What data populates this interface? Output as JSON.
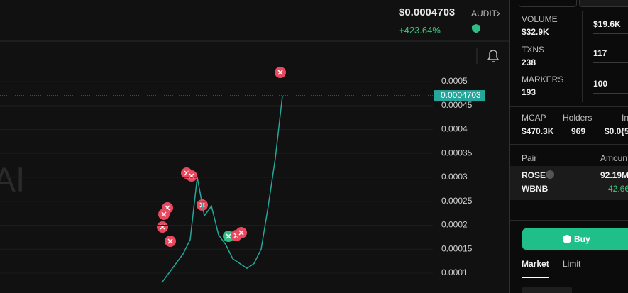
{
  "header": {
    "price": "$0.0004703",
    "change": "+423.64%",
    "audit": "AUDIT"
  },
  "watermark": "AI",
  "price_chart": {
    "type": "line",
    "color": "#26a69a",
    "values": [
      8e-05,
      0.0001,
      0.00012,
      0.00014,
      0.00017,
      0.0003,
      0.00022,
      0.00024,
      0.00018,
      0.00016,
      0.00013,
      0.00012,
      0.00011,
      0.00012,
      0.00015,
      0.00024,
      0.00034,
      0.0004703
    ],
    "ylim": [
      5.85e-05,
      0.0005815
    ],
    "yticks": [
      0.0001,
      0.00015,
      0.0002,
      0.00025,
      0.0003,
      0.00035,
      0.0004,
      0.00045,
      0.0005
    ],
    "current_price": 0.0004703
  },
  "stats": [
    {
      "label": "VOLUME",
      "value": "$32.9K",
      "right": "$19.6K"
    },
    {
      "label": "TXNS",
      "value": "238",
      "right": "117"
    },
    {
      "label": "MARKERS",
      "value": "193",
      "right": "100"
    }
  ],
  "metrics": [
    {
      "label": "MCAP",
      "value": "$470.3K"
    },
    {
      "label": "Holders",
      "value": "969"
    },
    {
      "label": "In",
      "value": "$0.0{5"
    }
  ],
  "pairs": {
    "headers": [
      "Pair",
      "Amoun"
    ],
    "rows": [
      {
        "token": "ROSE",
        "amount": "92.19M"
      },
      {
        "token": "WBNB",
        "amount": "42.66"
      }
    ]
  },
  "buy": "Buy",
  "tabs": [
    "Market",
    "Limit"
  ]
}
